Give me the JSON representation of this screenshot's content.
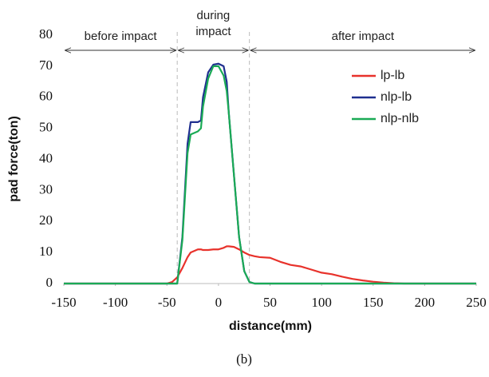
{
  "chart_data": {
    "type": "line",
    "x_label": "distance(mm)",
    "y_label": "pad force(ton)",
    "caption": "(b)",
    "annotations": [
      "before impact",
      "during",
      "impact",
      "after impact"
    ],
    "vlines": [
      -40,
      30
    ],
    "x": [
      -150,
      -50,
      -45,
      -40,
      -35,
      -30,
      -27,
      -20,
      -17,
      -15,
      -10,
      -5,
      0,
      5,
      8,
      10,
      15,
      20,
      25,
      30,
      35,
      40,
      50,
      60,
      70,
      80,
      90,
      100,
      110,
      120,
      130,
      140,
      150,
      160,
      170,
      180,
      250
    ],
    "series": [
      {
        "name": "lp-lb",
        "color": "#e8322b",
        "values": [
          0,
          0,
          0.5,
          2,
          5,
          8.5,
          10,
          11,
          11,
          10.8,
          10.8,
          11,
          11,
          11.5,
          12,
          12,
          11.8,
          11,
          10,
          9.2,
          8.8,
          8.5,
          8.3,
          7,
          6,
          5.5,
          4.5,
          3.5,
          3,
          2.2,
          1.5,
          1,
          0.6,
          0.3,
          0.1,
          0,
          0
        ]
      },
      {
        "name": "nlp-lb",
        "color": "#1f2f8f",
        "values": [
          0,
          0,
          0,
          0,
          15,
          45,
          52,
          52,
          52.5,
          60,
          68,
          70.5,
          70.8,
          70,
          65,
          55,
          35,
          15,
          4,
          0.5,
          0,
          0,
          0,
          0,
          0,
          0,
          0,
          0,
          0,
          0,
          0,
          0,
          0,
          0,
          0,
          0,
          0
        ]
      },
      {
        "name": "nlp-nlb",
        "color": "#1aaa55",
        "values": [
          0,
          0,
          0,
          0,
          14,
          42,
          48,
          49,
          50,
          57,
          66,
          70,
          70,
          67,
          62,
          55,
          35,
          15,
          4,
          0.5,
          0,
          0,
          0,
          0,
          0,
          0,
          0,
          0,
          0,
          0,
          0,
          0,
          0,
          0,
          0,
          0,
          0
        ]
      }
    ],
    "xlim": [
      -150,
      250
    ],
    "xticks": [
      -150,
      -100,
      -50,
      0,
      50,
      100,
      150,
      200,
      250
    ],
    "ylim": [
      0,
      80
    ],
    "yticks": [
      0,
      10,
      20,
      30,
      40,
      50,
      60,
      70,
      80
    ],
    "legend": "upper right"
  }
}
